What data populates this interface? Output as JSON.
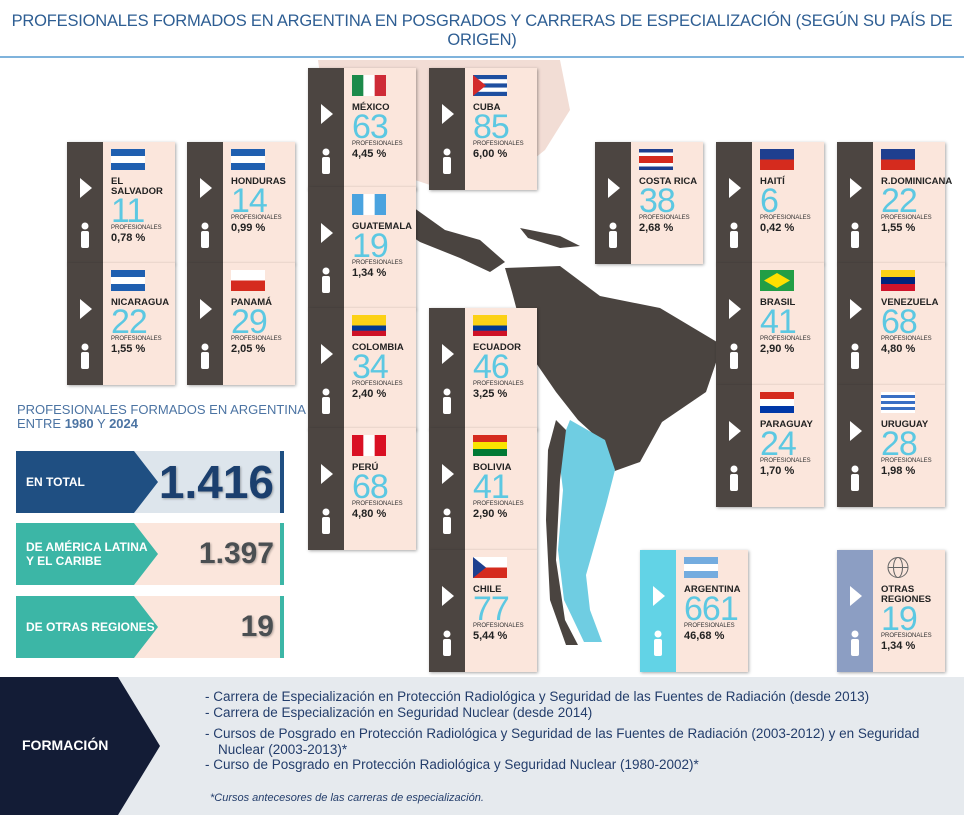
{
  "header": {
    "title": "PROFESIONALES FORMADOS EN ARGENTINA EN POSGRADOS Y CARRERAS DE ESPECIALIZACIÓN (SEGÚN SU PAÍS DE ORIGEN)"
  },
  "card_unit": "PROFESIONALES",
  "countries": [
    {
      "name": "MÉXICO",
      "count": 63,
      "percent": "4,45 %"
    },
    {
      "name": "CUBA",
      "count": 85,
      "percent": "6,00 %"
    },
    {
      "name": "EL SALVADOR",
      "count": 11,
      "percent": "0,78 %"
    },
    {
      "name": "HONDURAS",
      "count": 14,
      "percent": "0,99 %"
    },
    {
      "name": "GUATEMALA",
      "count": 19,
      "percent": "1,34 %"
    },
    {
      "name": "COSTA RICA",
      "count": 38,
      "percent": "2,68 %"
    },
    {
      "name": "HAITÍ",
      "count": 6,
      "percent": "0,42 %"
    },
    {
      "name": "R.DOMINICANA",
      "count": 22,
      "percent": "1,55 %"
    },
    {
      "name": "NICARAGUA",
      "count": 22,
      "percent": "1,55 %"
    },
    {
      "name": "PANAMÁ",
      "count": 29,
      "percent": "2,05 %"
    },
    {
      "name": "COLOMBIA",
      "count": 34,
      "percent": "2,40 %"
    },
    {
      "name": "ECUADOR",
      "count": 46,
      "percent": "3,25 %"
    },
    {
      "name": "BRASIL",
      "count": 41,
      "percent": "2,90 %"
    },
    {
      "name": "VENEZUELA",
      "count": 68,
      "percent": "4,80 %"
    },
    {
      "name": "PERÚ",
      "count": 68,
      "percent": "4,80 %"
    },
    {
      "name": "BOLIVIA",
      "count": 41,
      "percent": "2,90 %"
    },
    {
      "name": "PARAGUAY",
      "count": 24,
      "percent": "1,70 %"
    },
    {
      "name": "URUGUAY",
      "count": 28,
      "percent": "1,98 %"
    },
    {
      "name": "CHILE",
      "count": 77,
      "percent": "5,44 %"
    },
    {
      "name": "ARGENTINA",
      "count": 661,
      "percent": "46,68 %"
    },
    {
      "name": "OTRAS REGIONES",
      "count": 19,
      "percent": "1,34 %"
    }
  ],
  "summary": {
    "heading_line1": "PROFESIONALES FORMADOS EN ARGENTINA",
    "heading_line2_start": "ENTRE",
    "year_from": "1980",
    "heading_line2_mid": "Y",
    "year_to": "2024",
    "rows": [
      {
        "label": "EN TOTAL",
        "value": "1.416"
      },
      {
        "label": "DE AMÉRICA LATINA Y EL CARIBE",
        "value": "1.397"
      },
      {
        "label": "DE OTRAS REGIONES",
        "value": "19"
      }
    ]
  },
  "formacion": {
    "label": "FORMACIÓN",
    "items": [
      "- Carrera de Especialización en Protección Radiológica y Seguridad de las Fuentes de Radiación (desde 2013)",
      "- Carrera de Especialización en Seguridad Nuclear (desde 2014)",
      "- Cursos de Posgrado en Protección Radiológica y Seguridad de las Fuentes de Radiación (2003-2012) y en Seguridad Nuclear (2003-2013)*",
      "- Curso de Posgrado en Protección Radiológica y Seguridad Nuclear (1980-2002)*"
    ],
    "note": "*Cursos antecesores de las carreras de especialización."
  }
}
